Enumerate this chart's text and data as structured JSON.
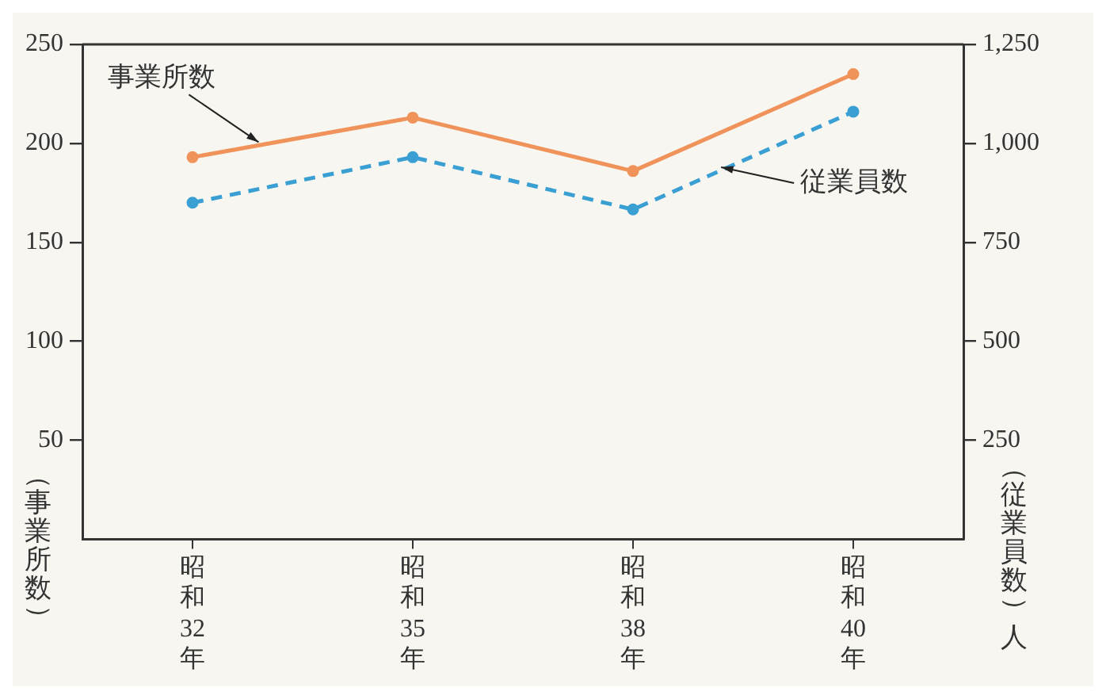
{
  "chart_data": {
    "type": "line",
    "categories": [
      "昭和32年",
      "昭和35年",
      "昭和38年",
      "昭和40年"
    ],
    "ylabel": "（事業所数）",
    "y2label": "（従業員数）人",
    "series": [
      {
        "name": "事業所数",
        "color": "#f0935a",
        "values": [
          193,
          213,
          186,
          235
        ],
        "line_style": "solid"
      },
      {
        "name": "従業員数",
        "color": "#3a9fd2",
        "values": [
          850,
          965,
          833,
          1080
        ],
        "axis": "y2",
        "line_style": "dashed"
      }
    ],
    "ylim": [
      0,
      250
    ],
    "yticks": [
      50,
      100,
      150,
      200,
      250
    ],
    "y2lim": [
      0,
      1250
    ],
    "y2ticks": [
      {
        "value": 250,
        "label": "250"
      },
      {
        "value": 500,
        "label": "500"
      },
      {
        "value": 750,
        "label": "750"
      },
      {
        "value": 1000,
        "label": "1,000"
      },
      {
        "value": 1250,
        "label": "1,250"
      }
    ],
    "marker": "circle",
    "grid": false,
    "legend": false
  }
}
